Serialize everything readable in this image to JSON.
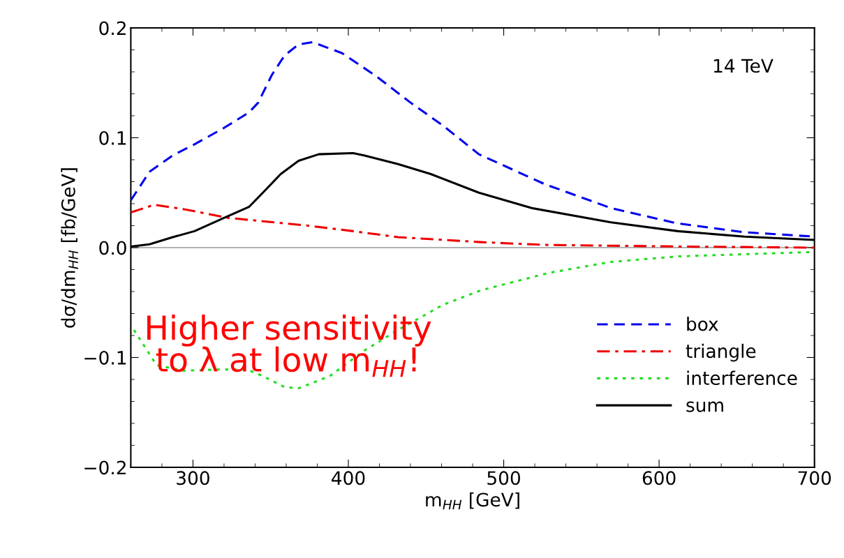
{
  "chart_data": {
    "type": "line",
    "xlabel": "m$_{HH}$ [GeV]",
    "ylabel": "dσ/dm$_{HH}$ [fb/GeV]",
    "xlim": [
      260,
      700
    ],
    "ylim": [
      -0.2,
      0.2
    ],
    "xticks": [
      300,
      400,
      500,
      600,
      700
    ],
    "yticks": [
      {
        "value": -0.2,
        "label": "−0.2"
      },
      {
        "value": -0.1,
        "label": "−0.1"
      },
      {
        "value": 0.0,
        "label": "0.0"
      },
      0.1,
      0.2
    ],
    "grid": false,
    "legend": "bottom right",
    "marker": "none",
    "ref_lines": [
      {
        "axis": "y",
        "value": 0,
        "color": "#999999",
        "line_style": "solid"
      }
    ],
    "annotations": [
      "14 TeV",
      "Higher sensitivity\nto λ at low m$_{HH}$!"
    ],
    "series": [
      {
        "name": "box",
        "color": "#0000ee",
        "line_style": "dashed",
        "x": [
          260,
          272,
          287,
          301,
          320,
          336,
          342,
          350.7,
          359,
          368,
          377,
          396,
          418,
          440,
          461,
          484,
          526,
          569,
          612,
          655,
          700
        ],
        "values": [
          0.043,
          0.069,
          0.084,
          0.094,
          0.109,
          0.123,
          0.132,
          0.157,
          0.175,
          0.185,
          0.187,
          0.177,
          0.156,
          0.132,
          0.111,
          0.085,
          0.058,
          0.036,
          0.022,
          0.014,
          0.01
        ]
      },
      {
        "name": "triangle",
        "color": "#ee0000",
        "line_style": "dashdot",
        "x": [
          260,
          275,
          294,
          323,
          345,
          374,
          403,
          432,
          485,
          526,
          612,
          700
        ],
        "values": [
          0.032,
          0.039,
          0.035,
          0.027,
          0.024,
          0.02,
          0.015,
          0.0095,
          0.005,
          0.0025,
          0.001,
          0.0
        ]
      },
      {
        "name": "interference",
        "color": "#22dd22",
        "line_style": "dotted",
        "x": [
          262,
          276.6,
          294,
          316,
          335,
          345,
          359,
          368,
          388,
          410,
          432,
          461,
          485,
          529,
          569,
          612,
          655,
          700
        ],
        "values": [
          -0.075,
          -0.107,
          -0.112,
          -0.111,
          -0.111,
          -0.117,
          -0.127,
          -0.128,
          -0.117,
          -0.094,
          -0.075,
          -0.052,
          -0.039,
          -0.023,
          -0.013,
          -0.008,
          -0.006,
          -0.004
        ]
      },
      {
        "name": "sum",
        "color": "#000000",
        "line_style": "solid",
        "x": [
          260,
          272,
          287,
          301,
          320,
          336,
          345,
          356.5,
          368,
          381,
          403,
          410,
          432,
          453,
          484,
          518,
          569,
          612,
          655,
          700
        ],
        "values": [
          0.001,
          0.003,
          0.0095,
          0.015,
          0.027,
          0.037,
          0.05,
          0.067,
          0.079,
          0.085,
          0.086,
          0.084,
          0.076,
          0.067,
          0.05,
          0.036,
          0.023,
          0.015,
          0.01,
          0.007
        ]
      }
    ]
  }
}
